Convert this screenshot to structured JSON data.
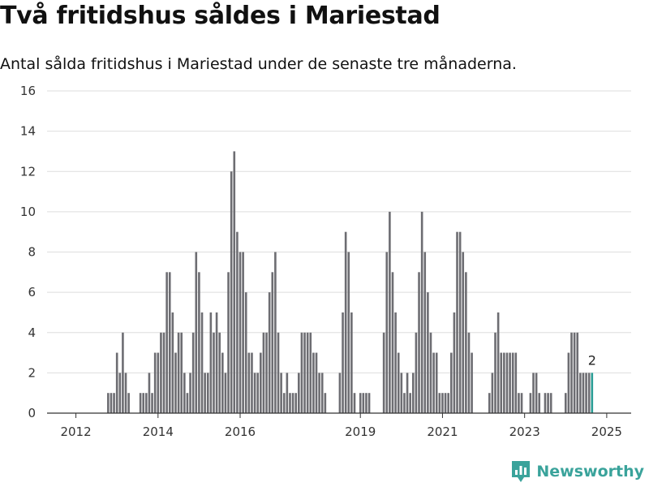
{
  "header": {
    "title": "Två fritidshus såldes i Mariestad",
    "subtitle": "Antal sålda fritidshus i Mariestad under de senaste tre månaderna."
  },
  "brand": {
    "name": "Newsworthy",
    "color": "#3aa39b"
  },
  "chart_data": {
    "type": "bar",
    "title": "Två fritidshus såldes i Mariestad",
    "subtitle": "Antal sålda fritidshus i Mariestad under de senaste tre månaderna.",
    "xlabel": "",
    "ylabel": "",
    "ylim": [
      0,
      16
    ],
    "yticks": [
      0,
      2,
      4,
      6,
      8,
      10,
      12,
      14,
      16
    ],
    "xticks": [
      "2012",
      "2014",
      "2016",
      "2019",
      "2021",
      "2023",
      "2025"
    ],
    "grid": true,
    "bar_color": "#6d6d72",
    "highlight_color": "#2a9d95",
    "highlight_label": "2",
    "values": [
      0,
      0,
      0,
      0,
      0,
      0,
      0,
      0,
      0,
      1,
      1,
      1,
      3,
      2,
      4,
      2,
      1,
      0,
      0,
      0,
      1,
      1,
      1,
      2,
      1,
      3,
      3,
      4,
      4,
      7,
      7,
      5,
      3,
      4,
      4,
      2,
      1,
      2,
      4,
      8,
      7,
      5,
      2,
      2,
      5,
      4,
      5,
      4,
      3,
      2,
      7,
      12,
      13,
      9,
      8,
      8,
      6,
      3,
      3,
      2,
      2,
      3,
      4,
      4,
      6,
      7,
      8,
      4,
      2,
      1,
      2,
      1,
      1,
      1,
      2,
      4,
      4,
      4,
      4,
      3,
      3,
      2,
      2,
      1,
      0,
      0,
      0,
      0,
      2,
      5,
      9,
      8,
      5,
      1,
      0,
      1,
      1,
      1,
      1,
      0,
      0,
      0,
      0,
      4,
      8,
      10,
      7,
      5,
      3,
      2,
      1,
      2,
      1,
      2,
      4,
      7,
      10,
      8,
      6,
      4,
      3,
      3,
      1,
      1,
      1,
      1,
      3,
      5,
      9,
      9,
      8,
      7,
      4,
      3,
      0,
      0,
      0,
      0,
      0,
      1,
      2,
      4,
      5,
      3,
      3,
      3,
      3,
      3,
      3,
      1,
      1,
      0,
      0,
      1,
      2,
      2,
      1,
      0,
      1,
      1,
      1,
      0,
      0,
      0,
      0,
      1,
      3,
      4,
      4,
      4,
      2,
      2,
      2,
      2,
      2
    ]
  }
}
